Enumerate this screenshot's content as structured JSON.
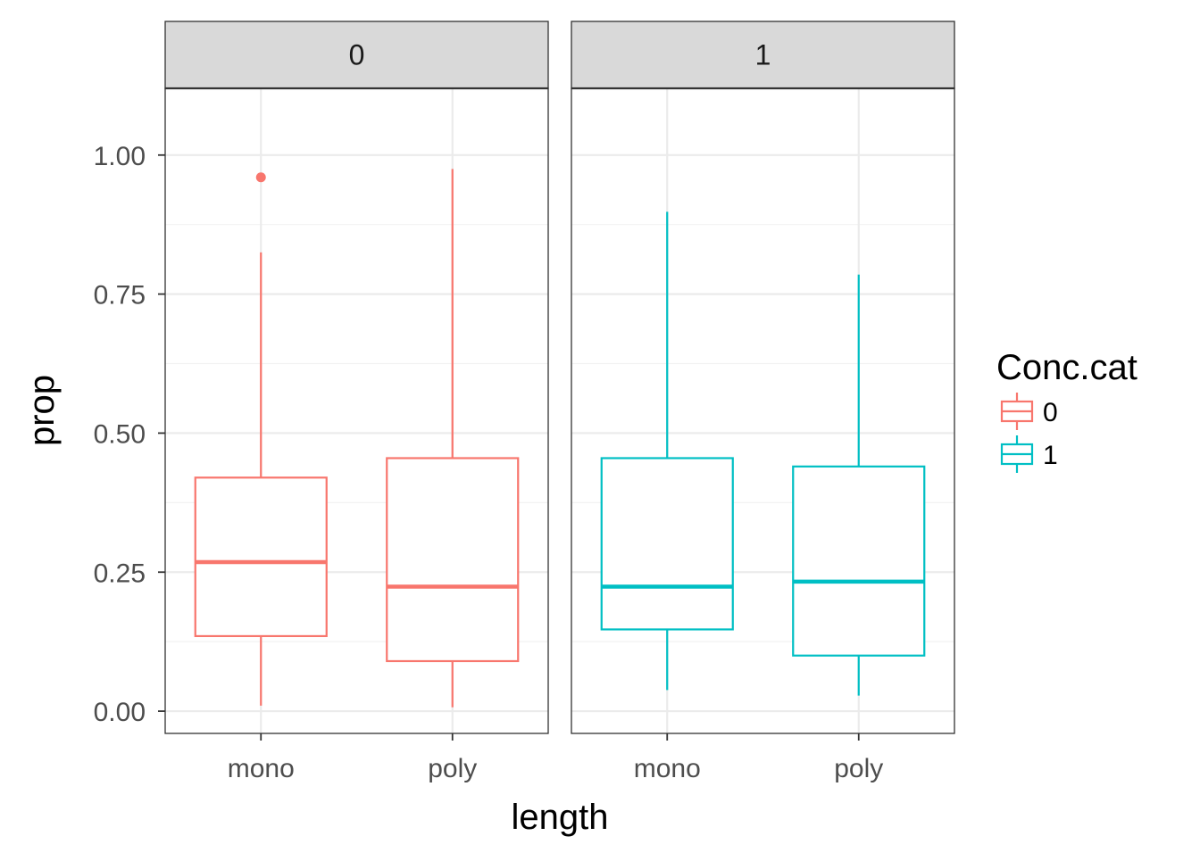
{
  "chart_data": {
    "type": "boxplot",
    "xlabel": "length",
    "ylabel": "prop",
    "ylim": [
      -0.04,
      1.12
    ],
    "yticks": [
      0.0,
      0.25,
      0.5,
      0.75,
      1.0
    ],
    "ytick_labels": [
      "0.00",
      "0.25",
      "0.50",
      "0.75",
      "1.00"
    ],
    "categories": [
      "mono",
      "poly"
    ],
    "facet_variable": "Conc.cat",
    "grid": true,
    "legend": {
      "title": "Conc.cat",
      "position": "right",
      "entries": [
        {
          "label": "0",
          "color": "#F8766D"
        },
        {
          "label": "1",
          "color": "#00BFC4"
        }
      ]
    },
    "panels": [
      {
        "strip_label": "0",
        "color": "#F8766D",
        "boxes": [
          {
            "category": "mono",
            "whisker_low": 0.01,
            "q1": 0.135,
            "median": 0.268,
            "q3": 0.42,
            "whisker_high": 0.825,
            "outliers": [
              0.96
            ]
          },
          {
            "category": "poly",
            "whisker_low": 0.007,
            "q1": 0.09,
            "median": 0.224,
            "q3": 0.455,
            "whisker_high": 0.975,
            "outliers": []
          }
        ]
      },
      {
        "strip_label": "1",
        "color": "#00BFC4",
        "boxes": [
          {
            "category": "mono",
            "whisker_low": 0.038,
            "q1": 0.147,
            "median": 0.224,
            "q3": 0.455,
            "whisker_high": 0.898,
            "outliers": []
          },
          {
            "category": "poly",
            "whisker_low": 0.028,
            "q1": 0.1,
            "median": 0.233,
            "q3": 0.44,
            "whisker_high": 0.785,
            "outliers": []
          }
        ]
      }
    ]
  }
}
